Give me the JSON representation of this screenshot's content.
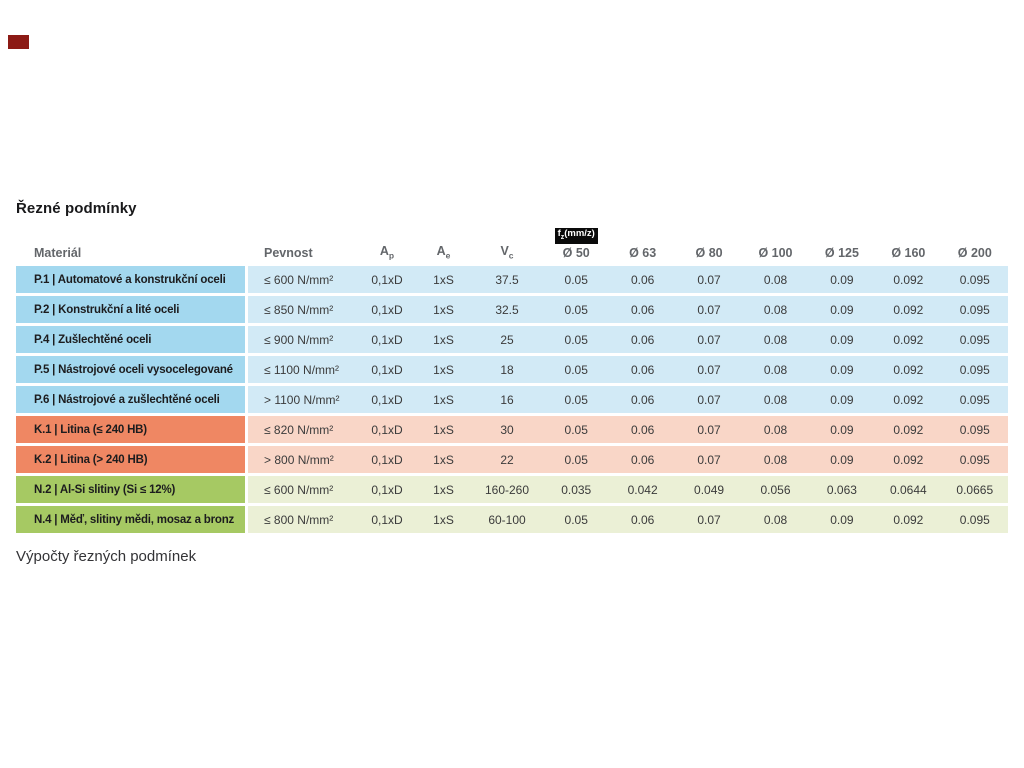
{
  "page": {
    "title": "Řezné podmínky",
    "section_below": "Výpočty řezných podmínek"
  },
  "colors": {
    "brand_mark": "#8c1a15",
    "steel_dark": "#a3d8ef",
    "steel_light": "#d2eaf6",
    "castiron_dark": "#ef8763",
    "castiron_light": "#f9d6c7",
    "nonferrous_dark": "#a6c963",
    "nonferrous_light": "#ebf0d6",
    "fz_tag_bg": "#0a0a0a",
    "header_text": "#63666a"
  },
  "table": {
    "fz_tag_base": "f",
    "fz_tag_sub": "z",
    "fz_tag_rest": "(mm/z)",
    "columns": {
      "material": "Materiál",
      "pevnost": "Pevnost",
      "ap_base": "A",
      "ap_sub": "p",
      "ae_base": "A",
      "ae_sub": "e",
      "vc_base": "V",
      "vc_sub": "c",
      "d50": "Ø 50",
      "d63": "Ø 63",
      "d80": "Ø 80",
      "d100": "Ø 100",
      "d125": "Ø 125",
      "d160": "Ø 160",
      "d200": "Ø 200"
    },
    "rows": [
      {
        "group": "P",
        "material": "P.1 | Automatové a konstrukční oceli",
        "pevnost": "≤ 600 N/mm²",
        "ap": "0,1xD",
        "ae": "1xS",
        "vc": "37.5",
        "fz": [
          "0.05",
          "0.06",
          "0.07",
          "0.08",
          "0.09",
          "0.092",
          "0.095"
        ]
      },
      {
        "group": "P",
        "material": "P.2 | Konstrukční a lité oceli",
        "pevnost": "≤ 850 N/mm²",
        "ap": "0,1xD",
        "ae": "1xS",
        "vc": "32.5",
        "fz": [
          "0.05",
          "0.06",
          "0.07",
          "0.08",
          "0.09",
          "0.092",
          "0.095"
        ]
      },
      {
        "group": "P",
        "material": "P.4 | Zušlechtěné oceli",
        "pevnost": "≤ 900 N/mm²",
        "ap": "0,1xD",
        "ae": "1xS",
        "vc": "25",
        "fz": [
          "0.05",
          "0.06",
          "0.07",
          "0.08",
          "0.09",
          "0.092",
          "0.095"
        ]
      },
      {
        "group": "P",
        "material": "P.5 | Nástrojové oceli vysocelegované",
        "pevnost": "≤ 1100 N/mm²",
        "ap": "0,1xD",
        "ae": "1xS",
        "vc": "18",
        "fz": [
          "0.05",
          "0.06",
          "0.07",
          "0.08",
          "0.09",
          "0.092",
          "0.095"
        ]
      },
      {
        "group": "P",
        "material": "P.6 | Nástrojové a zušlechtěné oceli",
        "pevnost": "> 1100 N/mm²",
        "ap": "0,1xD",
        "ae": "1xS",
        "vc": "16",
        "fz": [
          "0.05",
          "0.06",
          "0.07",
          "0.08",
          "0.09",
          "0.092",
          "0.095"
        ]
      },
      {
        "group": "K",
        "material": "K.1 | Litina (≤ 240 HB)",
        "pevnost": "≤ 820 N/mm²",
        "ap": "0,1xD",
        "ae": "1xS",
        "vc": "30",
        "fz": [
          "0.05",
          "0.06",
          "0.07",
          "0.08",
          "0.09",
          "0.092",
          "0.095"
        ]
      },
      {
        "group": "K",
        "material": "K.2 | Litina (> 240 HB)",
        "pevnost": "> 800 N/mm²",
        "ap": "0,1xD",
        "ae": "1xS",
        "vc": "22",
        "fz": [
          "0.05",
          "0.06",
          "0.07",
          "0.08",
          "0.09",
          "0.092",
          "0.095"
        ]
      },
      {
        "group": "N",
        "material": "N.2 | Al-Si slitiny (Si ≤ 12%)",
        "pevnost": "≤ 600 N/mm²",
        "ap": "0,1xD",
        "ae": "1xS",
        "vc": "160-260",
        "fz": [
          "0.035",
          "0.042",
          "0.049",
          "0.056",
          "0.063",
          "0.0644",
          "0.0665"
        ]
      },
      {
        "group": "N",
        "material": "N.4 | Měď, slitiny mědi, mosaz a bronz",
        "pevnost": "≤ 800 N/mm²",
        "ap": "0,1xD",
        "ae": "1xS",
        "vc": "60-100",
        "fz": [
          "0.05",
          "0.06",
          "0.07",
          "0.08",
          "0.09",
          "0.092",
          "0.095"
        ]
      }
    ]
  }
}
